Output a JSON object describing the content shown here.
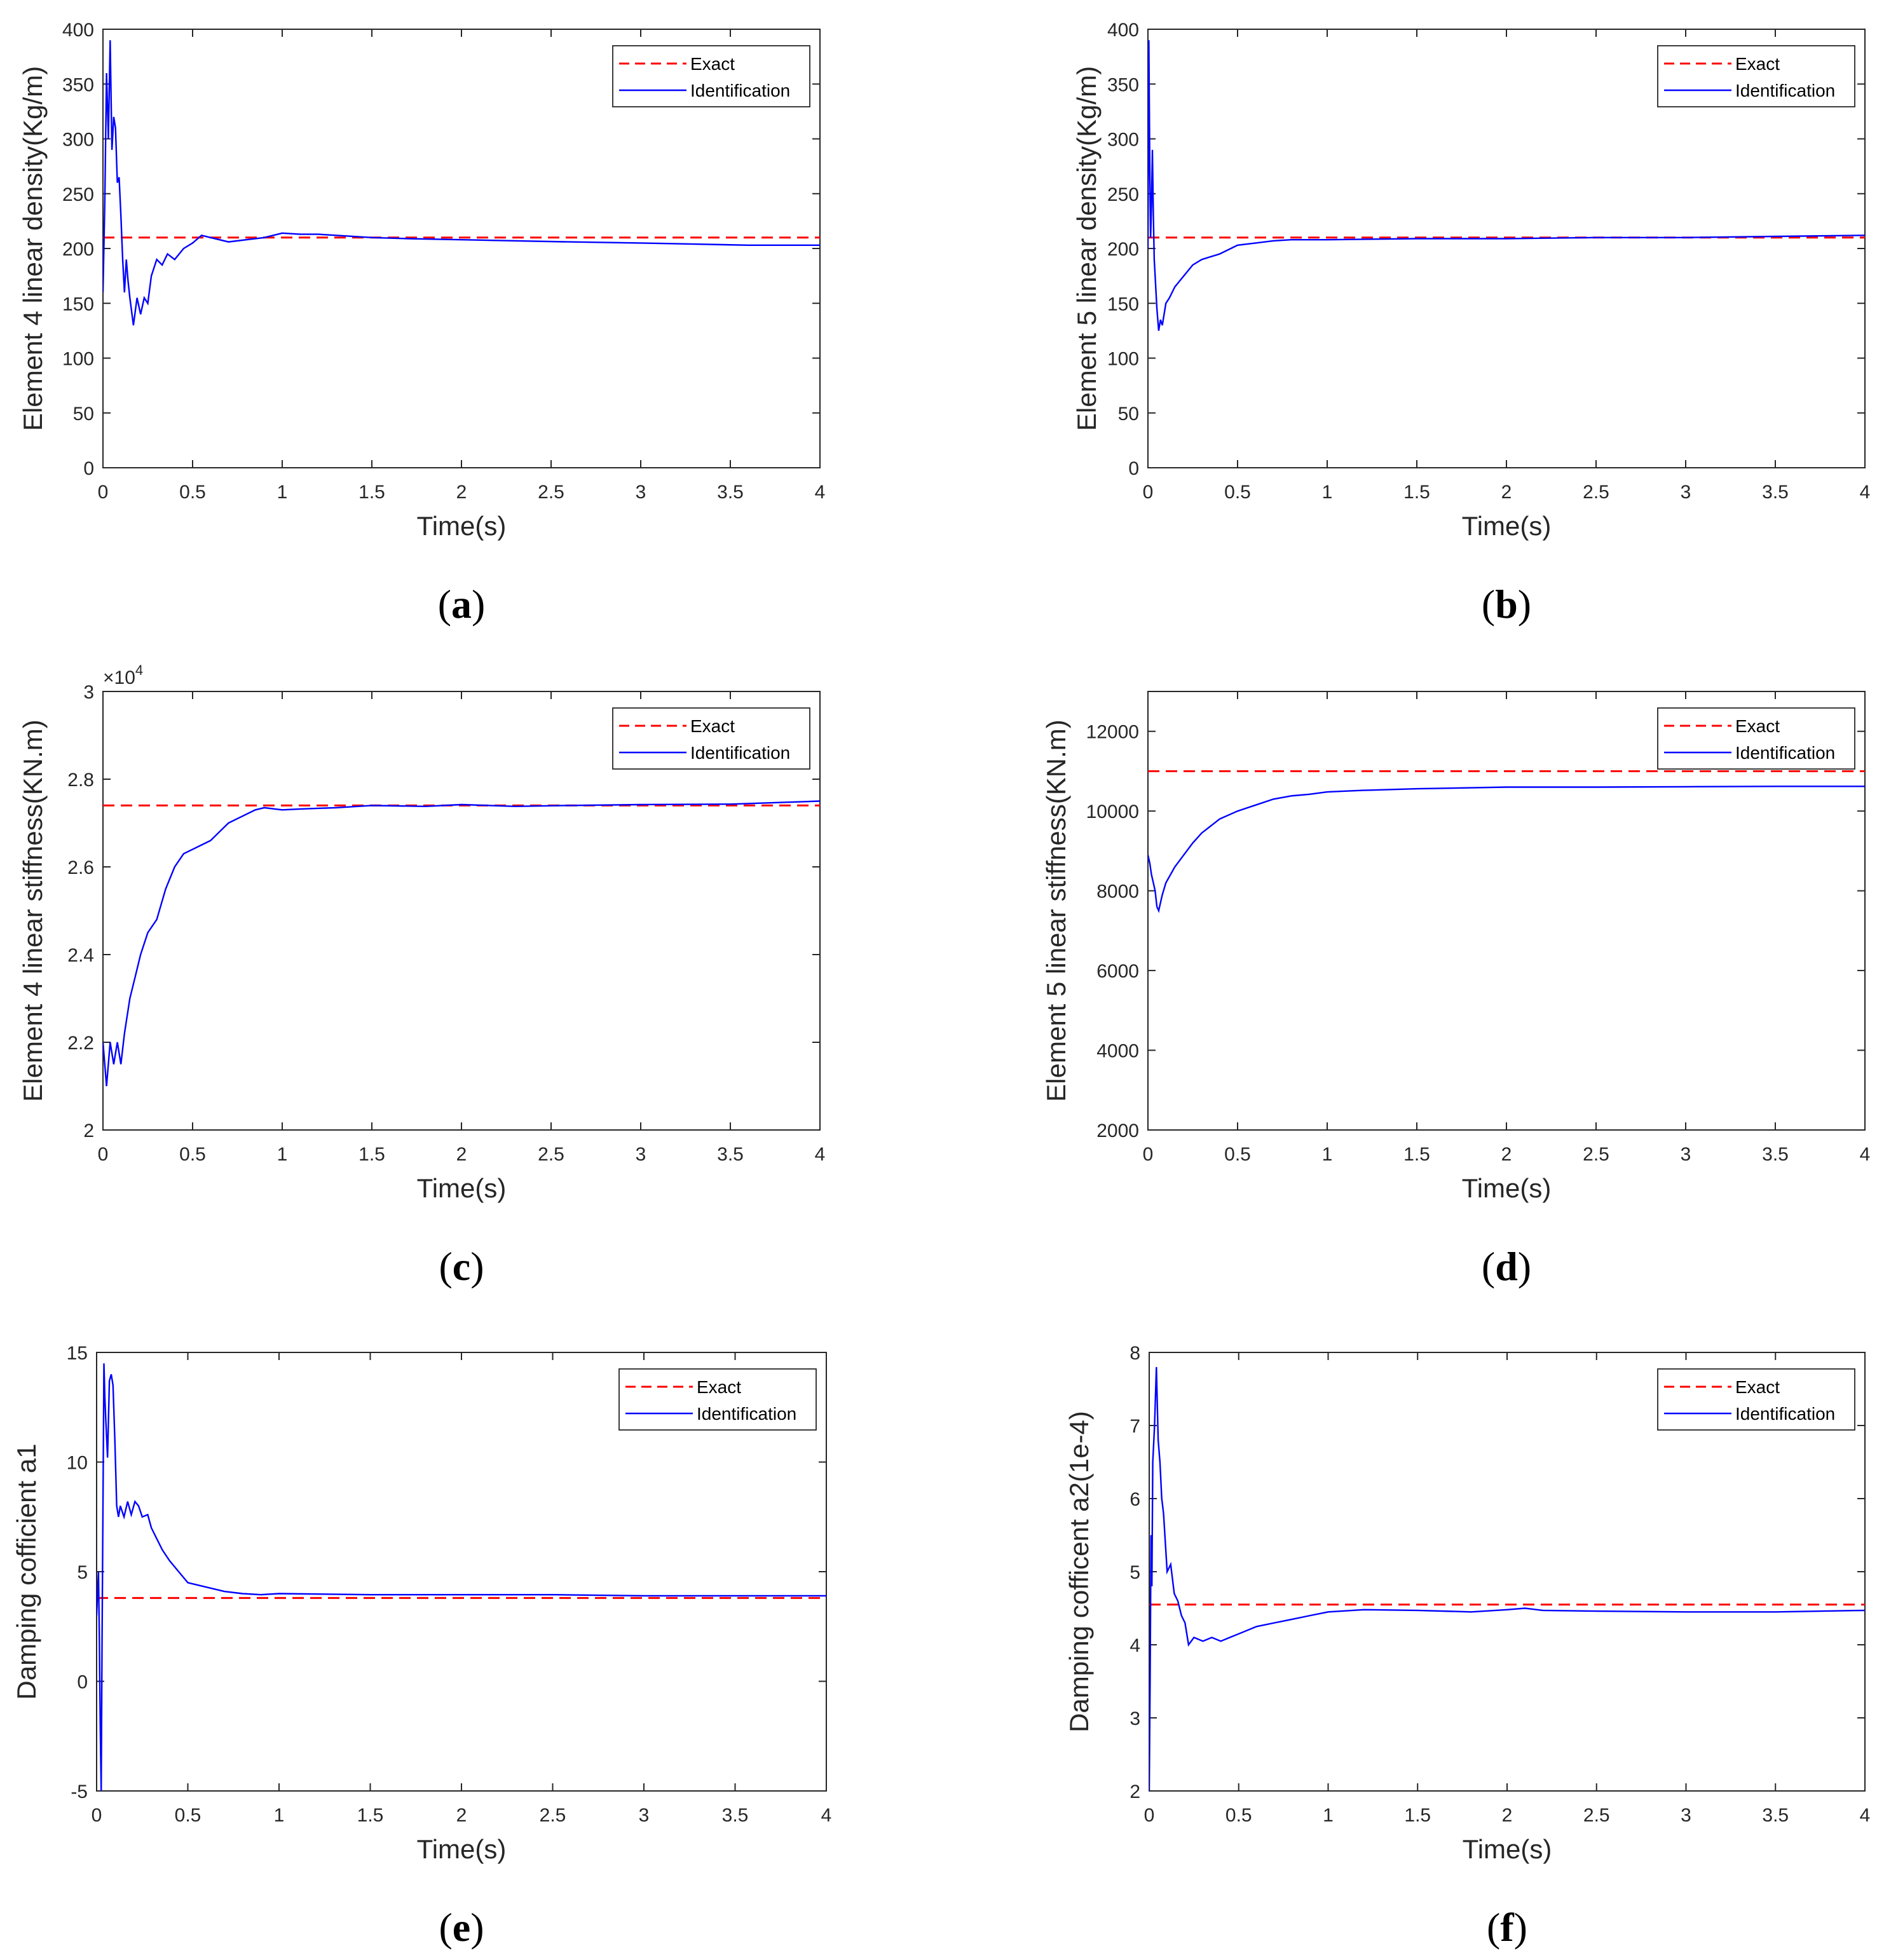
{
  "colors": {
    "exact": "#ff0000",
    "identification": "#0000ff",
    "axes": "#262626"
  },
  "legend": {
    "exact_label": "Exact",
    "identification_label": "Identification"
  },
  "chart_data": [
    {
      "id": "a",
      "panel_label": "a",
      "type": "line",
      "title": "",
      "xlabel": "Time(s)",
      "ylabel": "Element 4 linear  density(Kg/m)",
      "xlim": [
        0,
        4
      ],
      "ylim": [
        0,
        400
      ],
      "xticks": [
        0,
        0.5,
        1,
        1.5,
        2,
        2.5,
        3,
        3.5,
        4
      ],
      "xtick_labels": [
        "0",
        "0.5",
        "1",
        "1.5",
        "2",
        "2.5",
        "3",
        "3.5",
        "4"
      ],
      "yticks": [
        0,
        50,
        100,
        150,
        200,
        250,
        300,
        350,
        400
      ],
      "ytick_labels": [
        "0",
        "50",
        "100",
        "150",
        "200",
        "250",
        "300",
        "350",
        "400"
      ],
      "exponent_label": "",
      "legend_position": "top-right",
      "series": [
        {
          "name": "Exact",
          "style": "dashed",
          "x": [
            0,
            4
          ],
          "values": [
            210,
            210
          ]
        },
        {
          "name": "Identification",
          "style": "solid",
          "x": [
            0,
            0.01,
            0.02,
            0.03,
            0.04,
            0.05,
            0.06,
            0.07,
            0.08,
            0.09,
            0.1,
            0.11,
            0.12,
            0.13,
            0.14,
            0.15,
            0.17,
            0.19,
            0.21,
            0.23,
            0.25,
            0.27,
            0.3,
            0.33,
            0.36,
            0.4,
            0.45,
            0.5,
            0.55,
            0.6,
            0.7,
            0.8,
            0.9,
            1.0,
            1.1,
            1.2,
            1.3,
            1.5,
            1.7,
            2.0,
            2.3,
            2.6,
            3.0,
            3.3,
            3.6,
            4.0
          ],
          "values": [
            160,
            240,
            360,
            300,
            390,
            290,
            320,
            310,
            260,
            265,
            230,
            190,
            160,
            190,
            170,
            155,
            130,
            155,
            140,
            155,
            150,
            175,
            190,
            185,
            195,
            190,
            200,
            205,
            212,
            210,
            206,
            208,
            210,
            214,
            213,
            213,
            212,
            210,
            209,
            208,
            207,
            206,
            205,
            204,
            203,
            203
          ]
        }
      ]
    },
    {
      "id": "b",
      "panel_label": "b",
      "type": "line",
      "title": "",
      "xlabel": "Time(s)",
      "ylabel": "Element 5 linear density(Kg/m)",
      "xlim": [
        0,
        4
      ],
      "ylim": [
        0,
        400
      ],
      "xticks": [
        0,
        0.5,
        1,
        1.5,
        2,
        2.5,
        3,
        3.5,
        4
      ],
      "xtick_labels": [
        "0",
        "0.5",
        "1",
        "1.5",
        "2",
        "2.5",
        "3",
        "3.5",
        "4"
      ],
      "yticks": [
        0,
        50,
        100,
        150,
        200,
        250,
        300,
        350,
        400
      ],
      "ytick_labels": [
        "0",
        "50",
        "100",
        "150",
        "200",
        "250",
        "300",
        "350",
        "400"
      ],
      "exponent_label": "",
      "legend_position": "top-right",
      "series": [
        {
          "name": "Exact",
          "style": "dashed",
          "x": [
            0,
            4
          ],
          "values": [
            210,
            210
          ]
        },
        {
          "name": "Identification",
          "style": "solid",
          "x": [
            0,
            0.005,
            0.01,
            0.015,
            0.02,
            0.025,
            0.03,
            0.035,
            0.04,
            0.05,
            0.06,
            0.07,
            0.08,
            0.1,
            0.12,
            0.15,
            0.2,
            0.25,
            0.3,
            0.4,
            0.5,
            0.6,
            0.7,
            0.8,
            1.0,
            1.5,
            2.0,
            2.5,
            3.0,
            3.5,
            4.0
          ],
          "values": [
            200,
            390,
            280,
            210,
            240,
            290,
            230,
            190,
            175,
            145,
            125,
            135,
            130,
            150,
            155,
            165,
            175,
            185,
            190,
            195,
            203,
            205,
            207,
            208,
            208,
            209,
            209,
            210,
            210,
            211,
            212
          ]
        }
      ]
    },
    {
      "id": "c",
      "panel_label": "c",
      "type": "line",
      "title": "",
      "xlabel": "Time(s)",
      "ylabel": "Element 4 linear stiffness(KN.m)",
      "xlim": [
        0,
        4
      ],
      "ylim": [
        2,
        3
      ],
      "xticks": [
        0,
        0.5,
        1,
        1.5,
        2,
        2.5,
        3,
        3.5,
        4
      ],
      "xtick_labels": [
        "0",
        "0.5",
        "1",
        "1.5",
        "2",
        "2.5",
        "3",
        "3.5",
        "4"
      ],
      "yticks": [
        2,
        2.2,
        2.4,
        2.6,
        2.8,
        3
      ],
      "ytick_labels": [
        "2",
        "2.2",
        "2.4",
        "2.6",
        "2.8",
        "3"
      ],
      "exponent_label": "×10",
      "exponent_power": "4",
      "legend_position": "top-right",
      "series": [
        {
          "name": "Exact",
          "style": "dashed",
          "x": [
            0,
            4
          ],
          "values": [
            2.74,
            2.74
          ]
        },
        {
          "name": "Identification",
          "style": "solid",
          "x": [
            0,
            0.02,
            0.04,
            0.06,
            0.08,
            0.1,
            0.12,
            0.15,
            0.18,
            0.21,
            0.25,
            0.3,
            0.35,
            0.4,
            0.45,
            0.5,
            0.55,
            0.6,
            0.65,
            0.7,
            0.75,
            0.8,
            0.85,
            0.9,
            1.0,
            1.1,
            1.3,
            1.5,
            1.8,
            2.0,
            2.3,
            2.6,
            3.0,
            3.5,
            4.0
          ],
          "values": [
            2.2,
            2.1,
            2.2,
            2.15,
            2.2,
            2.15,
            2.22,
            2.3,
            2.35,
            2.4,
            2.45,
            2.48,
            2.55,
            2.6,
            2.63,
            2.64,
            2.65,
            2.66,
            2.68,
            2.7,
            2.71,
            2.72,
            2.73,
            2.735,
            2.73,
            2.732,
            2.735,
            2.74,
            2.738,
            2.742,
            2.738,
            2.74,
            2.742,
            2.743,
            2.75
          ]
        }
      ]
    },
    {
      "id": "d",
      "panel_label": "d",
      "type": "line",
      "title": "",
      "xlabel": "Time(s)",
      "ylabel": "Element 5 linear stiffness(KN.m)",
      "xlim": [
        0,
        4
      ],
      "ylim": [
        2000,
        13000
      ],
      "xticks": [
        0,
        0.5,
        1,
        1.5,
        2,
        2.5,
        3,
        3.5,
        4
      ],
      "xtick_labels": [
        "0",
        "0.5",
        "1",
        "1.5",
        "2",
        "2.5",
        "3",
        "3.5",
        "4"
      ],
      "yticks": [
        2000,
        4000,
        6000,
        8000,
        10000,
        12000
      ],
      "ytick_labels": [
        "2000",
        "4000",
        "6000",
        "8000",
        "10000",
        "12000"
      ],
      "exponent_label": "",
      "legend_position": "top-right",
      "series": [
        {
          "name": "Exact",
          "style": "dashed",
          "x": [
            0,
            4
          ],
          "values": [
            11000,
            11000
          ]
        },
        {
          "name": "Identification",
          "style": "solid",
          "x": [
            0,
            0.01,
            0.02,
            0.03,
            0.04,
            0.05,
            0.06,
            0.07,
            0.08,
            0.1,
            0.15,
            0.2,
            0.25,
            0.3,
            0.4,
            0.5,
            0.6,
            0.7,
            0.8,
            0.9,
            1.0,
            1.2,
            1.5,
            2.0,
            2.5,
            3.0,
            3.5,
            4.0
          ],
          "values": [
            8900,
            8700,
            8400,
            8200,
            8000,
            7600,
            7500,
            7700,
            7900,
            8200,
            8600,
            8900,
            9200,
            9450,
            9800,
            10000,
            10150,
            10300,
            10380,
            10420,
            10480,
            10520,
            10560,
            10600,
            10600,
            10610,
            10620,
            10620
          ]
        }
      ]
    },
    {
      "id": "e",
      "panel_label": "e",
      "type": "line",
      "title": "",
      "xlabel": "Time(s)",
      "ylabel": "Damping cofficient a1",
      "xlim": [
        0,
        4
      ],
      "ylim": [
        -5,
        15
      ],
      "xticks": [
        0,
        0.5,
        1,
        1.5,
        2,
        2.5,
        3,
        3.5,
        4
      ],
      "xtick_labels": [
        "0",
        "0.5",
        "1",
        "1.5",
        "2",
        "2.5",
        "3",
        "3.5",
        "4"
      ],
      "yticks": [
        -5,
        0,
        5,
        10,
        15
      ],
      "ytick_labels": [
        "-5",
        "0",
        "5",
        "10",
        "15"
      ],
      "exponent_label": "",
      "legend_position": "top-right",
      "series": [
        {
          "name": "Exact",
          "style": "dashed",
          "x": [
            0,
            4
          ],
          "values": [
            3.8,
            3.8
          ]
        },
        {
          "name": "Identification",
          "style": "solid",
          "x": [
            0,
            0.01,
            0.015,
            0.02,
            0.025,
            0.03,
            0.035,
            0.04,
            0.045,
            0.05,
            0.06,
            0.07,
            0.08,
            0.09,
            0.1,
            0.11,
            0.12,
            0.13,
            0.15,
            0.17,
            0.19,
            0.21,
            0.23,
            0.25,
            0.28,
            0.3,
            0.33,
            0.36,
            0.4,
            0.45,
            0.5,
            0.6,
            0.7,
            0.8,
            0.9,
            1.0,
            1.5,
            2.0,
            2.5,
            3.0,
            3.5,
            4.0
          ],
          "values": [
            3,
            5,
            2,
            -2,
            -5,
            2,
            8,
            14.5,
            13,
            12,
            10.2,
            13.7,
            14,
            13.5,
            11,
            8,
            7.5,
            8,
            7.5,
            8.2,
            7.6,
            8.2,
            8,
            7.5,
            7.6,
            7,
            6.5,
            6,
            5.5,
            5,
            4.5,
            4.3,
            4.1,
            4.0,
            3.95,
            4.0,
            3.95,
            3.95,
            3.95,
            3.9,
            3.9,
            3.9
          ]
        }
      ]
    },
    {
      "id": "f",
      "panel_label": "f",
      "type": "line",
      "title": "",
      "xlabel": "Time(s)",
      "ylabel": "Damping cofficent a2(1e-4)",
      "xlim": [
        0,
        4
      ],
      "ylim": [
        2,
        8
      ],
      "xticks": [
        0,
        0.5,
        1,
        1.5,
        2,
        2.5,
        3,
        3.5,
        4
      ],
      "xtick_labels": [
        "0",
        "0.5",
        "1",
        "1.5",
        "2",
        "2.5",
        "3",
        "3.5",
        "4"
      ],
      "yticks": [
        2,
        3,
        4,
        5,
        6,
        7,
        8
      ],
      "ytick_labels": [
        "2",
        "3",
        "4",
        "5",
        "6",
        "7",
        "8"
      ],
      "exponent_label": "",
      "legend_position": "top-right",
      "series": [
        {
          "name": "Exact",
          "style": "dashed",
          "x": [
            0,
            4
          ],
          "values": [
            4.55,
            4.55
          ]
        },
        {
          "name": "Identification",
          "style": "solid",
          "x": [
            0,
            0.005,
            0.01,
            0.015,
            0.02,
            0.03,
            0.04,
            0.05,
            0.06,
            0.07,
            0.08,
            0.1,
            0.12,
            0.14,
            0.16,
            0.18,
            0.2,
            0.22,
            0.25,
            0.3,
            0.35,
            0.4,
            0.45,
            0.5,
            0.6,
            0.7,
            0.8,
            0.9,
            1.0,
            1.2,
            1.5,
            1.8,
            2.0,
            2.1,
            2.2,
            2.5,
            3.0,
            3.5,
            4.0
          ],
          "values": [
            2,
            3.5,
            5.5,
            4.8,
            6.5,
            7.0,
            7.8,
            6.8,
            6.5,
            6.0,
            5.8,
            5.0,
            5.1,
            4.7,
            4.6,
            4.4,
            4.3,
            4.0,
            4.1,
            4.05,
            4.1,
            4.05,
            4.1,
            4.15,
            4.25,
            4.3,
            4.35,
            4.4,
            4.45,
            4.48,
            4.47,
            4.45,
            4.48,
            4.5,
            4.47,
            4.46,
            4.45,
            4.45,
            4.47
          ]
        }
      ]
    }
  ]
}
